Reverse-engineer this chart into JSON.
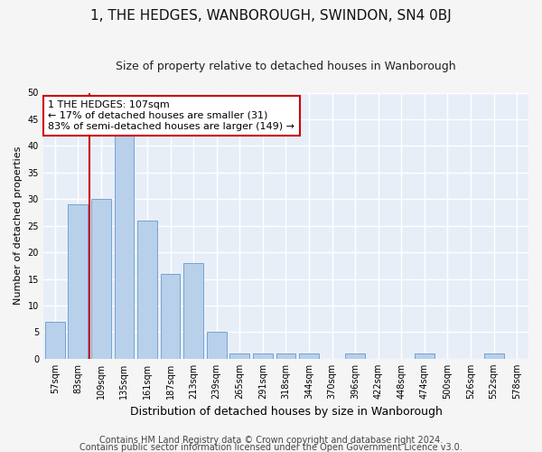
{
  "title": "1, THE HEDGES, WANBOROUGH, SWINDON, SN4 0BJ",
  "subtitle": "Size of property relative to detached houses in Wanborough",
  "xlabel": "Distribution of detached houses by size in Wanborough",
  "ylabel": "Number of detached properties",
  "categories": [
    "57sqm",
    "83sqm",
    "109sqm",
    "135sqm",
    "161sqm",
    "187sqm",
    "213sqm",
    "239sqm",
    "265sqm",
    "291sqm",
    "318sqm",
    "344sqm",
    "370sqm",
    "396sqm",
    "422sqm",
    "448sqm",
    "474sqm",
    "500sqm",
    "526sqm",
    "552sqm",
    "578sqm"
  ],
  "values": [
    7,
    29,
    30,
    42,
    26,
    16,
    18,
    5,
    1,
    1,
    1,
    1,
    0,
    1,
    0,
    0,
    1,
    0,
    0,
    1,
    0
  ],
  "bar_color": "#b8d0ea",
  "bar_edge_color": "#6699cc",
  "bar_edge_width": 0.6,
  "vline_x_index": 2,
  "vline_color": "#cc0000",
  "annotation_line1": "1 THE HEDGES: 107sqm",
  "annotation_line2": "← 17% of detached houses are smaller (31)",
  "annotation_line3": "83% of semi-detached houses are larger (149) →",
  "annotation_box_color": "#ffffff",
  "annotation_box_edge": "#cc0000",
  "ylim": [
    0,
    50
  ],
  "yticks": [
    0,
    5,
    10,
    15,
    20,
    25,
    30,
    35,
    40,
    45,
    50
  ],
  "footer1": "Contains HM Land Registry data © Crown copyright and database right 2024.",
  "footer2": "Contains public sector information licensed under the Open Government Licence v3.0.",
  "plot_bg_color": "#e8eef8",
  "fig_bg_color": "#f5f5f5",
  "grid_color": "#ffffff",
  "title_fontsize": 11,
  "subtitle_fontsize": 9,
  "tick_fontsize": 7,
  "ylabel_fontsize": 8,
  "xlabel_fontsize": 9,
  "annotation_fontsize": 8,
  "footer_fontsize": 7
}
